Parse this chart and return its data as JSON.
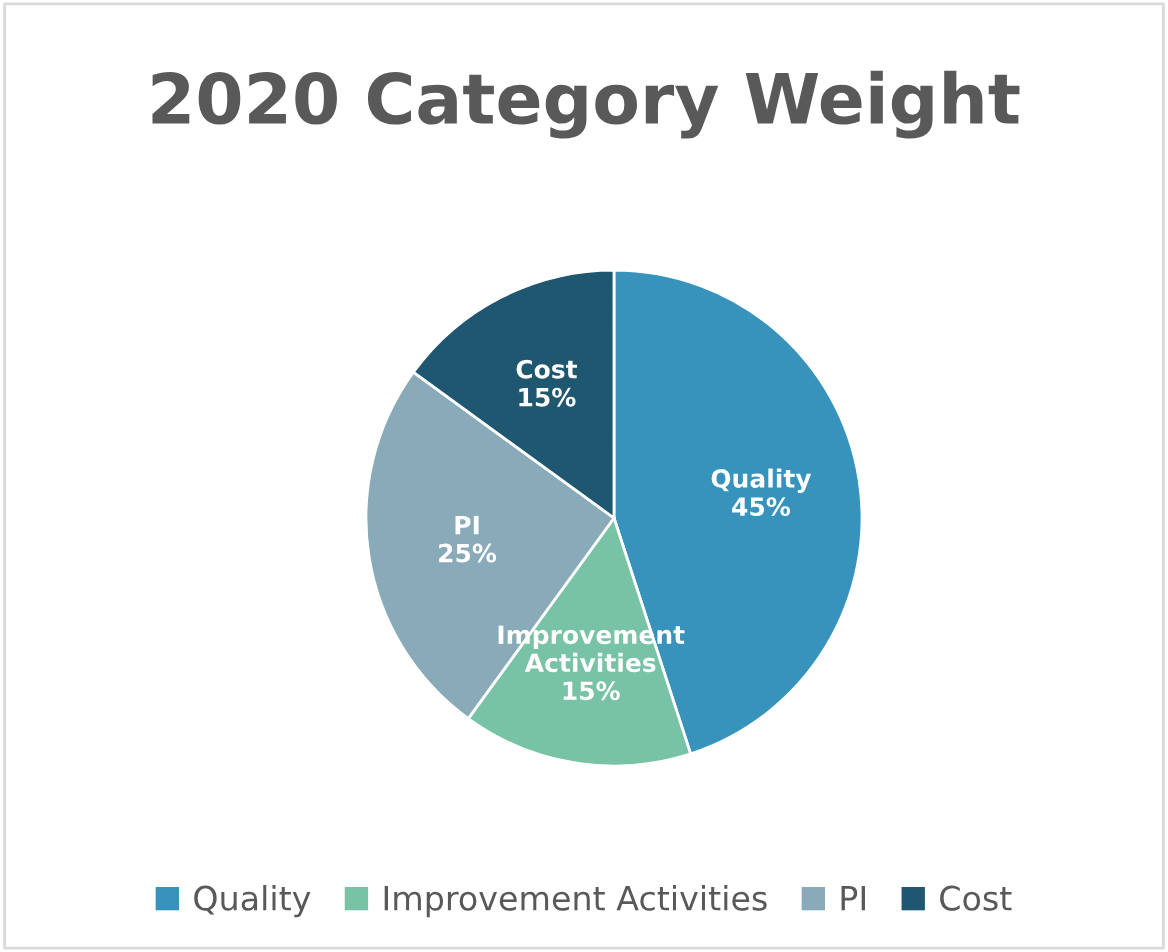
{
  "chart_data": {
    "type": "pie",
    "title": "2020 Category Weight",
    "categories": [
      "Quality",
      "Improvement Activities",
      "PI",
      "Cost"
    ],
    "values": [
      45,
      15,
      25,
      15
    ],
    "colors": [
      "#3893bc",
      "#78c2a6",
      "#89aab8",
      "#1f5670"
    ],
    "value_labels": [
      "45%",
      "15%",
      "25%",
      "15%"
    ],
    "legend": "bottom"
  }
}
